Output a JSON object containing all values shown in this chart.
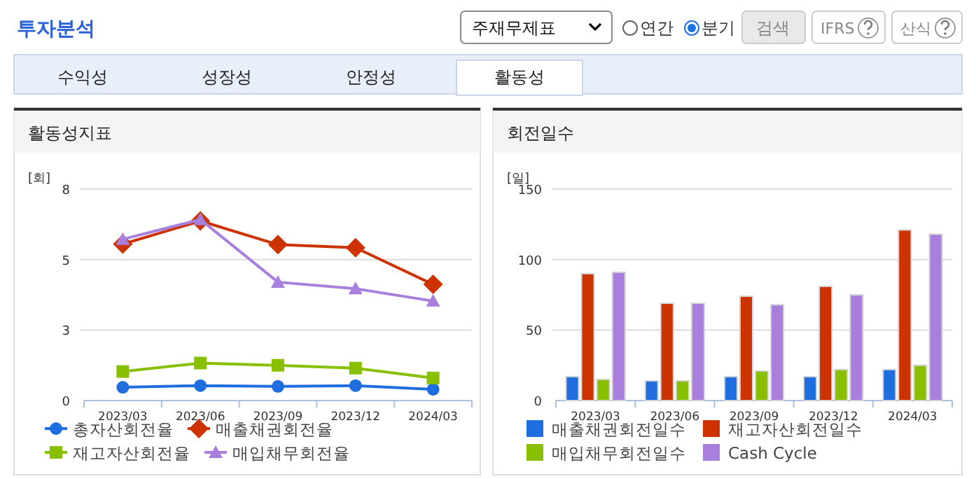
{
  "chart_data": [
    {
      "type": "line",
      "title": "활동성지표",
      "ylabel": "[회]",
      "categories": [
        "2023/03",
        "2023/06",
        "2023/09",
        "2023/12",
        "2024/03"
      ],
      "series": [
        {
          "name": "총자산회전율",
          "color": "#1f6ee0",
          "marker": "circle",
          "values": [
            0.47,
            0.53,
            0.5,
            0.53,
            0.4
          ]
        },
        {
          "name": "매출채권회전율",
          "color": "#cc3300",
          "marker": "diamond",
          "values": [
            5.55,
            6.37,
            5.53,
            5.42,
            4.12
          ]
        },
        {
          "name": "재고자산회전율",
          "color": "#88c000",
          "marker": "square",
          "values": [
            1.03,
            1.33,
            1.25,
            1.15,
            0.8
          ]
        },
        {
          "name": "매입채무회전율",
          "color": "#a87fdc",
          "marker": "triangle",
          "values": [
            5.72,
            6.42,
            4.2,
            3.97,
            3.53
          ]
        }
      ],
      "ylim": [
        0,
        7.5
      ],
      "yticks": [
        0,
        {
          "value": 2.5,
          "label": "3"
        },
        5,
        {
          "value": 7.5,
          "label": "8"
        }
      ],
      "grid": "y",
      "legend": "bottom",
      "annotations": [
        "투자분석",
        "주재무제표",
        "연간",
        "분기",
        "검색",
        "IFRS",
        "산식",
        "수익성",
        "성장성",
        "안정성",
        "활동성"
      ]
    },
    {
      "type": "bar",
      "title": "회전일수",
      "ylabel": "[일]",
      "categories": [
        "2023/03",
        "2023/06",
        "2023/09",
        "2023/12",
        "2024/03"
      ],
      "series": [
        {
          "name": "매출채권회전일수",
          "color": "#1f6ee0",
          "values": [
            17,
            14,
            17,
            17,
            22
          ]
        },
        {
          "name": "재고자산회전일수",
          "color": "#cc3300",
          "values": [
            90,
            69,
            74,
            81,
            121
          ]
        },
        {
          "name": "매입채무회전일수",
          "color": "#88c000",
          "values": [
            15,
            14,
            21,
            22,
            25
          ]
        },
        {
          "name": "Cash Cycle",
          "color": "#a87fdc",
          "values": [
            91,
            69,
            68,
            75,
            118
          ]
        }
      ],
      "ylim": [
        0,
        150
      ],
      "yticks": [
        0,
        50,
        100,
        150
      ],
      "grid": "y",
      "legend": "bottom"
    }
  ]
}
